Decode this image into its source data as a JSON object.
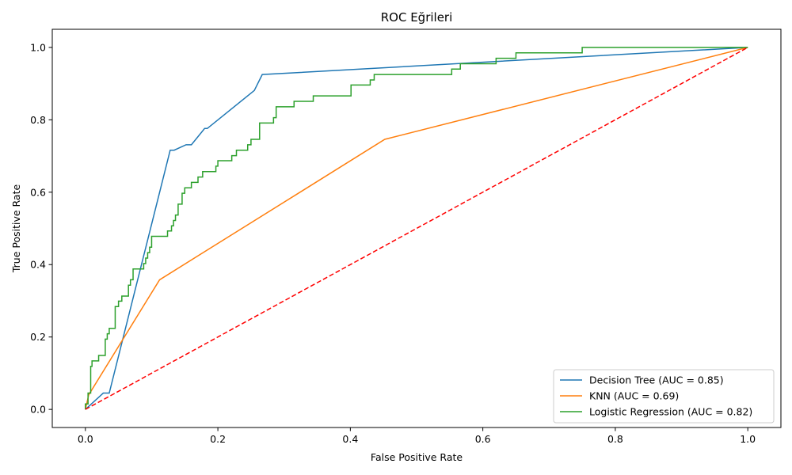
{
  "chart_data": {
    "type": "line",
    "title": "ROC Eğrileri",
    "xlabel": "False Positive Rate",
    "ylabel": "True Positive Rate",
    "xlim": [
      -0.05,
      1.05
    ],
    "ylim": [
      -0.05,
      1.05
    ],
    "xticks": [
      0.0,
      0.2,
      0.4,
      0.6,
      0.8,
      1.0
    ],
    "yticks": [
      0.0,
      0.2,
      0.4,
      0.6,
      0.8,
      1.0
    ],
    "xtick_labels": [
      "0.0",
      "0.2",
      "0.4",
      "0.6",
      "0.8",
      "1.0"
    ],
    "ytick_labels": [
      "0.0",
      "0.2",
      "0.4",
      "0.6",
      "0.8",
      "1.0"
    ],
    "grid": false,
    "legend_position": "bottom-right",
    "series": [
      {
        "name": "Decision Tree (AUC = 0.85)",
        "color": "#1f77b4",
        "style": "solid",
        "x": [
          0.0,
          0.027,
          0.036,
          0.128,
          0.134,
          0.152,
          0.16,
          0.18,
          0.184,
          0.255,
          0.267,
          1.0
        ],
        "y": [
          0.0,
          0.045,
          0.045,
          0.716,
          0.716,
          0.731,
          0.731,
          0.776,
          0.776,
          0.881,
          0.925,
          1.0
        ]
      },
      {
        "name": "KNN (AUC = 0.69)",
        "color": "#ff7f0e",
        "style": "solid",
        "x": [
          0.0,
          0.005,
          0.112,
          0.452,
          1.0
        ],
        "y": [
          0.0,
          0.04,
          0.358,
          0.746,
          1.0
        ]
      },
      {
        "name": "Logistic Regression (AUC = 0.82)",
        "color": "#2ca02c",
        "style": "step",
        "x": [
          0.0,
          0.0,
          0.004,
          0.004,
          0.008,
          0.008,
          0.01,
          0.01,
          0.02,
          0.02,
          0.03,
          0.03,
          0.033,
          0.033,
          0.036,
          0.036,
          0.045,
          0.045,
          0.05,
          0.05,
          0.055,
          0.055,
          0.065,
          0.065,
          0.068,
          0.068,
          0.072,
          0.072,
          0.088,
          0.088,
          0.091,
          0.091,
          0.094,
          0.094,
          0.097,
          0.097,
          0.1,
          0.1,
          0.124,
          0.124,
          0.13,
          0.13,
          0.133,
          0.133,
          0.136,
          0.136,
          0.14,
          0.14,
          0.146,
          0.146,
          0.15,
          0.15,
          0.16,
          0.16,
          0.17,
          0.17,
          0.177,
          0.177,
          0.197,
          0.197,
          0.2,
          0.2,
          0.221,
          0.221,
          0.228,
          0.228,
          0.245,
          0.245,
          0.25,
          0.25,
          0.263,
          0.263,
          0.284,
          0.284,
          0.288,
          0.288,
          0.315,
          0.315,
          0.344,
          0.344,
          0.401,
          0.401,
          0.43,
          0.43,
          0.436,
          0.436,
          0.438,
          0.438,
          0.553,
          0.553,
          0.566,
          0.566,
          0.62,
          0.62,
          0.65,
          0.65,
          0.75,
          0.75,
          1.0
        ],
        "y": [
          0.0,
          0.015,
          0.015,
          0.045,
          0.045,
          0.119,
          0.119,
          0.134,
          0.134,
          0.149,
          0.149,
          0.194,
          0.194,
          0.209,
          0.209,
          0.224,
          0.224,
          0.284,
          0.284,
          0.299,
          0.299,
          0.313,
          0.313,
          0.343,
          0.343,
          0.358,
          0.358,
          0.388,
          0.388,
          0.403,
          0.403,
          0.418,
          0.418,
          0.433,
          0.433,
          0.448,
          0.448,
          0.478,
          0.478,
          0.493,
          0.493,
          0.507,
          0.507,
          0.522,
          0.522,
          0.537,
          0.537,
          0.567,
          0.567,
          0.597,
          0.597,
          0.612,
          0.612,
          0.627,
          0.627,
          0.642,
          0.642,
          0.657,
          0.657,
          0.672,
          0.672,
          0.687,
          0.687,
          0.701,
          0.701,
          0.716,
          0.716,
          0.731,
          0.731,
          0.746,
          0.746,
          0.791,
          0.791,
          0.806,
          0.806,
          0.836,
          0.836,
          0.851,
          0.851,
          0.866,
          0.866,
          0.896,
          0.896,
          0.91,
          0.91,
          0.925,
          0.925,
          0.925,
          0.925,
          0.94,
          0.94,
          0.955,
          0.955,
          0.97,
          0.97,
          0.985,
          0.985,
          1.0,
          1.0
        ]
      },
      {
        "name": "",
        "color": "#ff0000",
        "style": "dashed",
        "x": [
          0.0,
          1.0
        ],
        "y": [
          0.0,
          1.0
        ]
      }
    ]
  }
}
